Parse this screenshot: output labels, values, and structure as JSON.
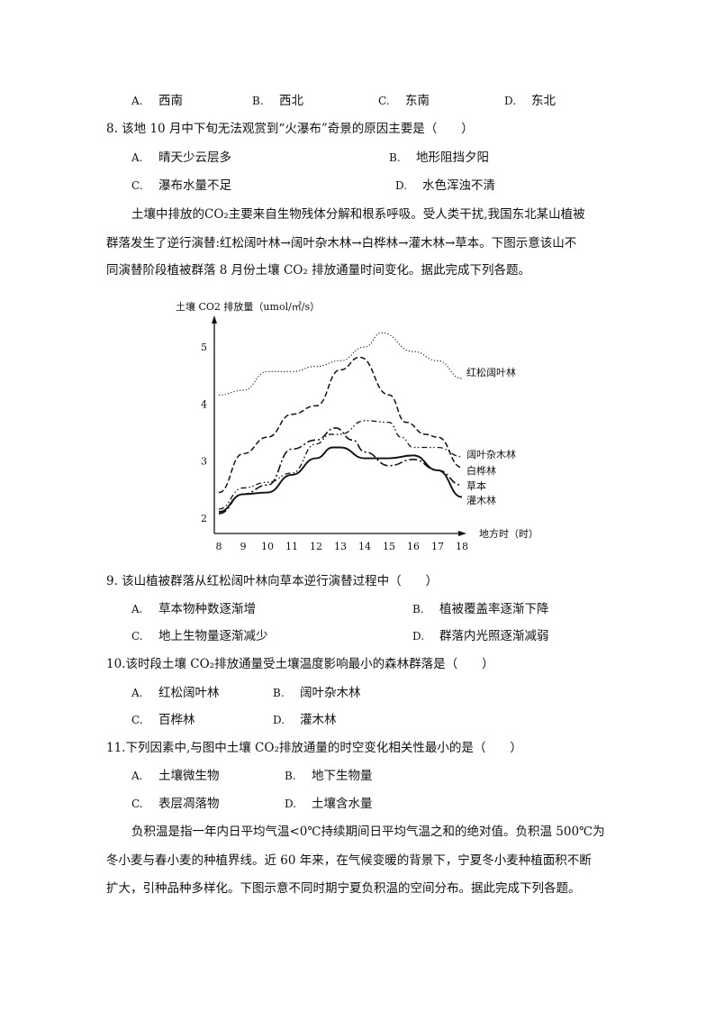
{
  "q7_options": [
    {
      "letter": "A.",
      "text": "西南"
    },
    {
      "letter": "B.",
      "text": "西北"
    },
    {
      "letter": "C.",
      "text": "东南"
    },
    {
      "letter": "D.",
      "text": "东北"
    }
  ],
  "q8": {
    "stem": "8. 该地 10 月中下旬无法观赏到“火瀑布”奇景的原因主要是（　　）",
    "options": [
      {
        "letter": "A.",
        "text": "晴天少云层多"
      },
      {
        "letter": "B.",
        "text": "地形阻挡夕阳"
      },
      {
        "letter": "C.",
        "text": "瀑布水量不足"
      },
      {
        "letter": "D.",
        "text": "水色浑浊不清"
      }
    ]
  },
  "passage1": [
    "土壤中排放的CO₂主要来自生物残体分解和根系呼吸。受人类干扰,我国东北某山植被",
    "群落发生了逆行演替:红松阔叶林→阔叶杂木林→白桦林→灌木林→草本。下图示意该山不",
    "同演替阶段植被群落 8 月份土壤 CO₂ 排放通量时间变化。据此完成下列各题。"
  ],
  "chart_data": {
    "type": "line",
    "ylabel": "土壤 CO2 排放量（umol/㎡/s）",
    "xlabel": "地方时（时）",
    "x_ticks": [
      8,
      9,
      10,
      11,
      12,
      13,
      14,
      15,
      16,
      17,
      18
    ],
    "y_ticks": [
      2,
      3,
      4,
      5
    ],
    "xlim": [
      8,
      18
    ],
    "ylim": [
      2,
      5.3
    ],
    "grid": false,
    "series": [
      {
        "name": "红松阔叶林",
        "style": "dotted",
        "points": [
          [
            8,
            4.16
          ],
          [
            9,
            4.24
          ],
          [
            10,
            4.57
          ],
          [
            11,
            4.57
          ],
          [
            12,
            4.66
          ],
          [
            13,
            4.76
          ],
          [
            14,
            5.0
          ],
          [
            14.7,
            5.25
          ],
          [
            16,
            4.92
          ],
          [
            17,
            4.76
          ],
          [
            18,
            4.45
          ]
        ]
      },
      {
        "name": "阔叶杂木林",
        "style": "dash-dot-dot",
        "points": [
          [
            8,
            2.16
          ],
          [
            9,
            2.53
          ],
          [
            10,
            2.63
          ],
          [
            11,
            2.79
          ],
          [
            12,
            3.3
          ],
          [
            12.6,
            3.47
          ],
          [
            13,
            3.47
          ],
          [
            14,
            3.71
          ],
          [
            15,
            3.68
          ],
          [
            15.5,
            3.42
          ],
          [
            16,
            3.24
          ],
          [
            17,
            3.24
          ],
          [
            18,
            3.08
          ]
        ]
      },
      {
        "name": "白桦林",
        "style": "dashed",
        "points": [
          [
            8,
            2.45
          ],
          [
            9,
            3.13
          ],
          [
            10,
            3.42
          ],
          [
            11,
            3.82
          ],
          [
            12,
            3.97
          ],
          [
            13,
            4.6
          ],
          [
            13.8,
            4.82
          ],
          [
            15,
            4.16
          ],
          [
            15.7,
            3.68
          ],
          [
            16.5,
            3.47
          ],
          [
            17,
            3.42
          ],
          [
            18,
            2.89
          ]
        ]
      },
      {
        "name": "草本",
        "style": "dash-dot",
        "points": [
          [
            8,
            2.08
          ],
          [
            9,
            2.42
          ],
          [
            10,
            2.58
          ],
          [
            11,
            3.21
          ],
          [
            12,
            3.37
          ],
          [
            12.8,
            3.58
          ],
          [
            13.5,
            3.37
          ],
          [
            14,
            3.16
          ],
          [
            15,
            2.92
          ],
          [
            16,
            3.03
          ],
          [
            17,
            2.84
          ],
          [
            18,
            2.58
          ]
        ]
      },
      {
        "name": "灌木林",
        "style": "solid",
        "points": [
          [
            8,
            2.11
          ],
          [
            9,
            2.42
          ],
          [
            10,
            2.45
          ],
          [
            11,
            2.76
          ],
          [
            12,
            3.05
          ],
          [
            12.7,
            3.24
          ],
          [
            13,
            3.24
          ],
          [
            14,
            3.05
          ],
          [
            15,
            3.05
          ],
          [
            16,
            3.1
          ],
          [
            17,
            2.84
          ],
          [
            18,
            2.37
          ]
        ]
      }
    ]
  },
  "q9": {
    "stem": "9. 该山植被群落从红松阔叶林向草本逆行演替过程中（　　）",
    "options": [
      {
        "letter": "A.",
        "text": "草本物种数逐渐增"
      },
      {
        "letter": "B.",
        "text": "植被覆盖率逐渐下降"
      },
      {
        "letter": "C.",
        "text": "地上生物量逐渐减少"
      },
      {
        "letter": "D.",
        "text": "群落内光照逐渐减弱"
      }
    ]
  },
  "q10": {
    "stem": "10.该时段土壤 CO₂排放通量受土壤温度影响最小的森林群落是（　　）",
    "options": [
      {
        "letter": "A.",
        "text": "红松阔叶林"
      },
      {
        "letter": "B.",
        "text": "阔叶杂木林"
      },
      {
        "letter": "C.",
        "text": "百桦林"
      },
      {
        "letter": "D.",
        "text": "灌木林"
      }
    ]
  },
  "q11": {
    "stem": "11.下列因素中,与图中土壤 CO₂排放通量的时空变化相关性最小的是（　　）",
    "options": [
      {
        "letter": "A.",
        "text": "土壤微生物"
      },
      {
        "letter": "B.",
        "text": "地下生物量"
      },
      {
        "letter": "C.",
        "text": "表层凋落物"
      },
      {
        "letter": "D.",
        "text": "土壤含水量"
      }
    ]
  },
  "passage2": [
    "负积温是指一年内日平均气温<0℃持续期间日平均气温之和的绝对值。负积温 500℃为",
    "冬小麦与春小麦的种植界线。近 60 年来，在气候变暖的背景下，宁夏冬小麦种植面积不断",
    "扩大，引种品种多样化。下图示意不同时期宁夏负积温的空间分布。据此完成下列各题。"
  ]
}
